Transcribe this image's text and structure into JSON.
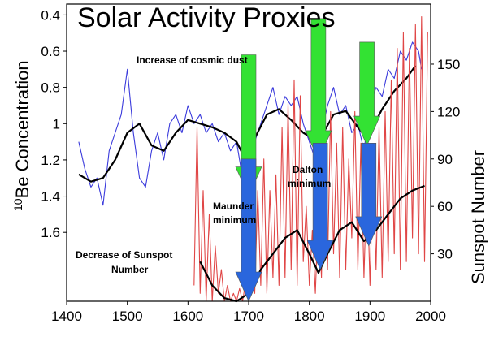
{
  "chart_data": {
    "type": "line",
    "title": "Solar Activity Proxies",
    "x_ticks": [
      "1400",
      "1500",
      "1600",
      "1700",
      "1800",
      "1900",
      "2000"
    ],
    "xlim": [
      1400,
      2000
    ],
    "left_axis": {
      "label_sup": "10",
      "label": "Be Concentration",
      "inverted": true,
      "ticks": [
        "0.4",
        "0.6",
        "0.8",
        "1",
        "1.2",
        "1.4",
        "1.6"
      ],
      "ylim": [
        0.34,
        1.98
      ]
    },
    "right_axis": {
      "label": "Sunspot Number",
      "ticks": [
        "30",
        "60",
        "90",
        "120",
        "150"
      ],
      "ylim": [
        0,
        188
      ]
    },
    "series": [
      {
        "axis": "left",
        "color": "#3b3bdc",
        "x": [
          1420,
          1430,
          1440,
          1450,
          1460,
          1470,
          1480,
          1490,
          1500,
          1510,
          1520,
          1530,
          1540,
          1550,
          1560,
          1570,
          1580,
          1590,
          1600,
          1610,
          1620,
          1630,
          1640,
          1650,
          1660,
          1670,
          1680,
          1690,
          1700,
          1710,
          1720,
          1730,
          1740,
          1750,
          1760,
          1770,
          1780,
          1790,
          1800,
          1810,
          1820,
          1830,
          1840,
          1850,
          1860,
          1870,
          1880,
          1890,
          1900,
          1910,
          1920,
          1930,
          1940,
          1950,
          1960,
          1970,
          1980,
          1985
        ],
        "values": [
          1.1,
          1.25,
          1.35,
          1.3,
          1.45,
          1.15,
          1.05,
          0.95,
          0.7,
          1.05,
          1.3,
          1.35,
          1.15,
          1.05,
          1.2,
          1.0,
          0.95,
          1.05,
          0.9,
          1.0,
          0.95,
          1.05,
          1.0,
          1.1,
          1.05,
          1.15,
          1.1,
          1.3,
          1.4,
          1.1,
          1.0,
          0.9,
          0.8,
          0.95,
          0.85,
          0.9,
          0.85,
          1.0,
          1.1,
          1.2,
          1.05,
          0.9,
          0.8,
          0.95,
          0.9,
          1.05,
          1.0,
          1.15,
          0.9,
          0.8,
          0.85,
          0.7,
          0.75,
          0.6,
          0.65,
          0.55,
          0.6,
          0.7
        ]
      },
      {
        "axis": "left",
        "color": "#000000",
        "x": [
          1420,
          1440,
          1460,
          1480,
          1500,
          1520,
          1540,
          1560,
          1580,
          1600,
          1620,
          1640,
          1660,
          1680,
          1695,
          1710,
          1730,
          1750,
          1770,
          1790,
          1815,
          1840,
          1860,
          1880,
          1895,
          1920,
          1940,
          1960,
          1975
        ],
        "values": [
          1.28,
          1.32,
          1.3,
          1.2,
          1.05,
          1.0,
          1.12,
          1.15,
          1.05,
          0.98,
          1.0,
          1.02,
          1.05,
          1.1,
          1.2,
          1.08,
          0.95,
          0.92,
          0.98,
          1.05,
          1.1,
          0.95,
          0.93,
          1.02,
          1.08,
          0.92,
          0.82,
          0.75,
          0.68
        ]
      },
      {
        "axis": "right",
        "color": "#e04646",
        "x": [
          1610,
          1615,
          1620,
          1625,
          1630,
          1635,
          1640,
          1645,
          1650,
          1655,
          1660,
          1665,
          1670,
          1675,
          1680,
          1685,
          1690,
          1695,
          1700,
          1705,
          1710,
          1715,
          1720,
          1725,
          1730,
          1735,
          1740,
          1745,
          1750,
          1755,
          1760,
          1765,
          1770,
          1775,
          1780,
          1785,
          1790,
          1795,
          1800,
          1805,
          1810,
          1815,
          1820,
          1825,
          1830,
          1835,
          1840,
          1845,
          1850,
          1855,
          1860,
          1865,
          1870,
          1875,
          1880,
          1885,
          1890,
          1895,
          1900,
          1905,
          1910,
          1915,
          1920,
          1925,
          1930,
          1935,
          1940,
          1945,
          1950,
          1955,
          1960,
          1965,
          1970,
          1975,
          1980,
          1985,
          1990,
          1995
        ],
        "values": [
          10,
          110,
          5,
          70,
          0,
          55,
          0,
          35,
          5,
          20,
          0,
          10,
          0,
          5,
          0,
          8,
          0,
          12,
          5,
          30,
          5,
          70,
          10,
          90,
          5,
          70,
          15,
          80,
          10,
          110,
          15,
          125,
          20,
          140,
          10,
          130,
          25,
          60,
          10,
          45,
          5,
          60,
          15,
          110,
          20,
          120,
          30,
          100,
          15,
          110,
          20,
          90,
          40,
          120,
          20,
          100,
          15,
          80,
          10,
          90,
          20,
          110,
          15,
          120,
          25,
          140,
          30,
          160,
          20,
          170,
          25,
          160,
          40,
          175,
          30,
          180,
          25,
          170
        ]
      },
      {
        "axis": "right",
        "color": "#000000",
        "x": [
          1620,
          1640,
          1660,
          1680,
          1700,
          1720,
          1740,
          1760,
          1780,
          1800,
          1815,
          1830,
          1850,
          1870,
          1890,
          1910,
          1930,
          1950,
          1970,
          1990
        ],
        "values": [
          25,
          10,
          2,
          0,
          5,
          20,
          30,
          40,
          45,
          30,
          18,
          30,
          45,
          50,
          38,
          45,
          55,
          65,
          70,
          73
        ]
      }
    ],
    "annotations": [
      {
        "text": "Increase of cosmic dust"
      },
      {
        "text": "Maunder minimum"
      },
      {
        "text": "Dalton minimum"
      },
      {
        "text": "Decrease of Sunspot Number"
      }
    ],
    "arrows": [
      {
        "color": "#33e233",
        "x_year": 1700,
        "from_be": 0.62,
        "to_be": 1.4
      },
      {
        "color": "#33e233",
        "x_year": 1815,
        "from_be": 0.42,
        "to_be": 1.2
      },
      {
        "color": "#33e233",
        "x_year": 1895,
        "from_be": 0.55,
        "to_be": 1.12
      },
      {
        "color": "#2a66dd",
        "x_year": 1700,
        "from_sun": 90,
        "to_sun": 0
      },
      {
        "color": "#2a66dd",
        "x_year": 1818,
        "from_sun": 100,
        "to_sun": 20
      },
      {
        "color": "#2a66dd",
        "x_year": 1898,
        "from_sun": 100,
        "to_sun": 35
      }
    ]
  }
}
